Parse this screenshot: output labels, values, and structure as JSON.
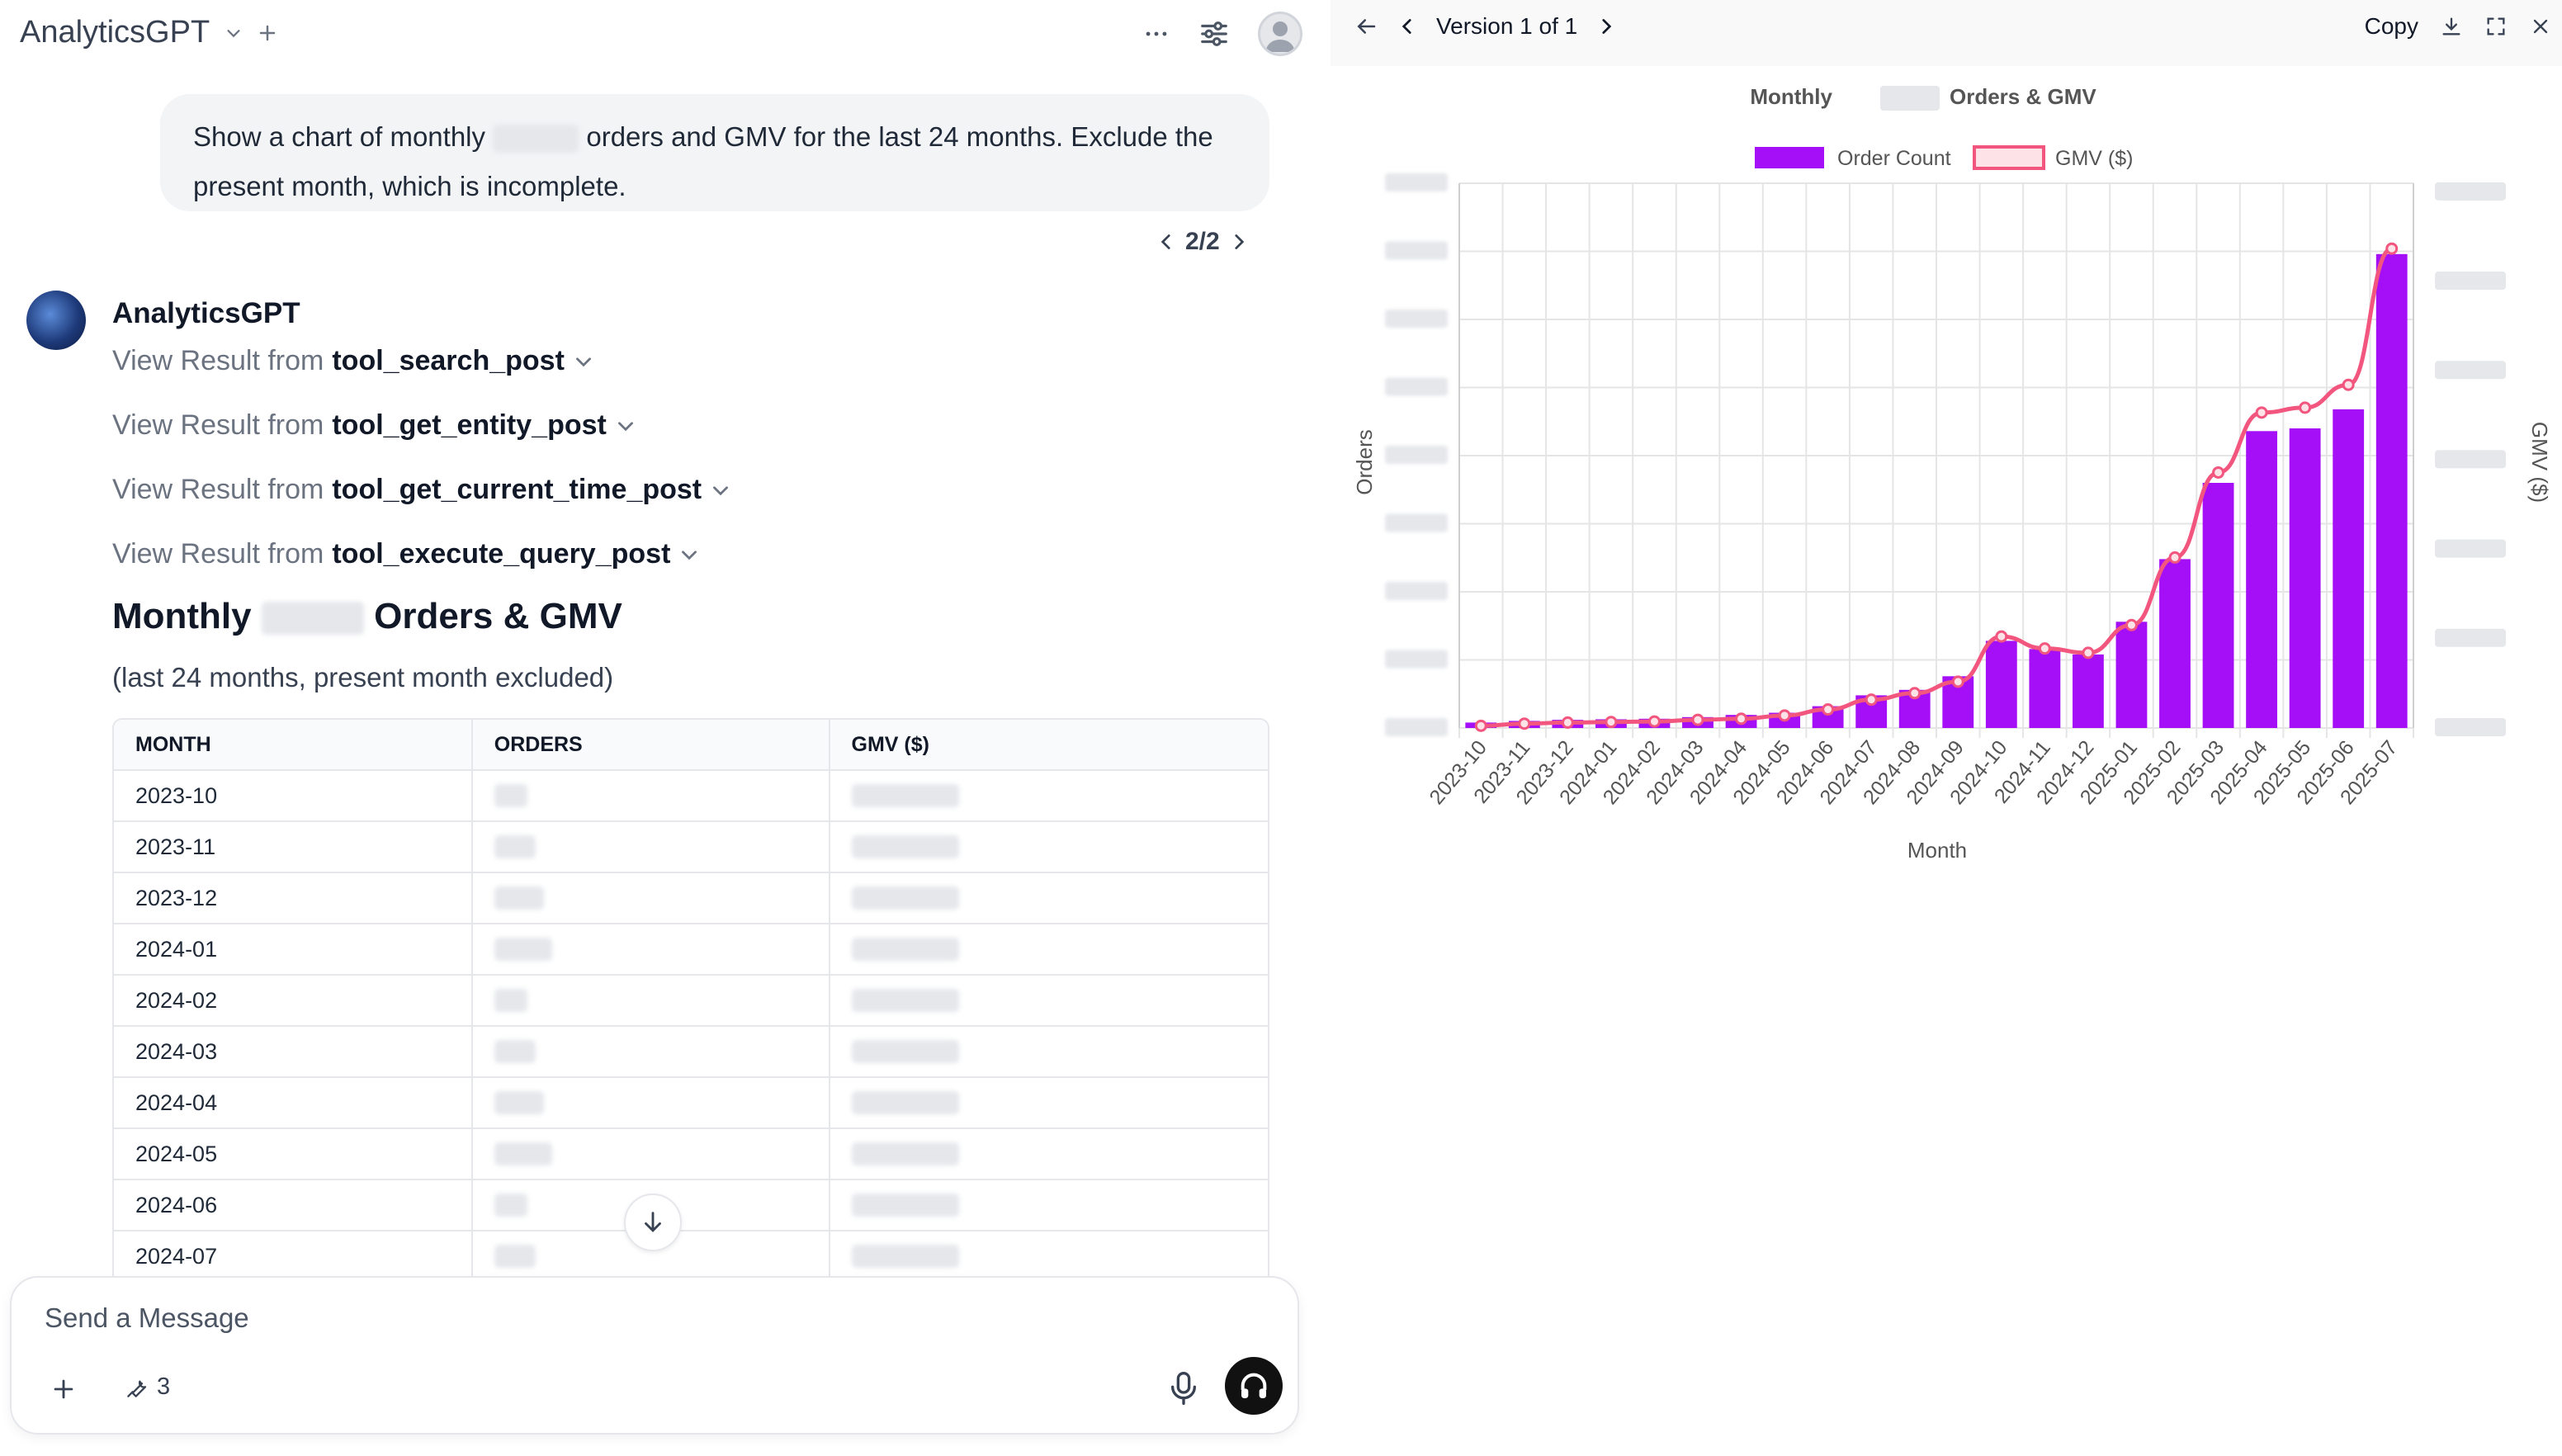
{
  "app": {
    "title": "AnalyticsGPT"
  },
  "user_message": {
    "text_before": "Show a chart of monthly",
    "text_after": "orders and GMV for the last 24 months. Exclude the present month, which is incomplete."
  },
  "pager": {
    "label": "2/2"
  },
  "assistant": {
    "name": "AnalyticsGPT",
    "tools": [
      {
        "prefix": "View Result from",
        "name": "tool_search_post"
      },
      {
        "prefix": "View Result from",
        "name": "tool_get_entity_post"
      },
      {
        "prefix": "View Result from",
        "name": "tool_get_current_time_post"
      },
      {
        "prefix": "View Result from",
        "name": "tool_execute_query_post"
      }
    ],
    "result_title_before": "Monthly",
    "result_title_after": "Orders & GMV",
    "result_subtitle": "(last 24 months, present month excluded)"
  },
  "table": {
    "headers": [
      "MONTH",
      "ORDERS",
      "GMV ($)"
    ],
    "months": [
      "2023-10",
      "2023-11",
      "2023-12",
      "2024-01",
      "2024-02",
      "2024-03",
      "2024-04",
      "2024-05",
      "2024-06",
      "2024-07"
    ]
  },
  "composer": {
    "placeholder": "Send a Message",
    "tools_count": "3"
  },
  "artifact": {
    "version_label": "Version 1 of 1",
    "copy_label": "Copy"
  },
  "chart_data": {
    "type": "bar",
    "title_before": "Monthly",
    "title_after": "Orders & GMV",
    "xlabel": "Month",
    "ylabel_left": "Orders",
    "ylabel_right": "GMV ($)",
    "legend_placement": "top",
    "grid": true,
    "categories": [
      "2023-10",
      "2023-11",
      "2023-12",
      "2024-01",
      "2024-02",
      "2024-03",
      "2024-04",
      "2024-05",
      "2024-06",
      "2024-07",
      "2024-08",
      "2024-09",
      "2024-10",
      "2024-11",
      "2024-12",
      "2025-01",
      "2025-02",
      "2025-03",
      "2025-04",
      "2025-05",
      "2025-06",
      "2025-07"
    ],
    "series": [
      {
        "name": "Order Count",
        "type": "bar",
        "axis": "left",
        "color": "#a50ff7",
        "values": [
          1.0,
          1.3,
          1.5,
          1.6,
          1.7,
          2.0,
          2.4,
          2.8,
          4.0,
          6.0,
          7.0,
          9.5,
          16.0,
          14.5,
          13.5,
          19.5,
          31.0,
          45.0,
          54.5,
          55.0,
          58.5,
          87.0
        ]
      },
      {
        "name": "GMV ($)",
        "type": "line",
        "axis": "right",
        "color": "#f2567f",
        "values": [
          0.4,
          0.8,
          1.0,
          1.1,
          1.2,
          1.5,
          1.7,
          2.3,
          3.4,
          5.2,
          6.4,
          8.5,
          16.8,
          14.6,
          13.8,
          18.9,
          31.3,
          46.9,
          57.9,
          58.8,
          63.0,
          88.0
        ]
      }
    ],
    "ylim_left": [
      0,
      100
    ],
    "ylim_right": [
      0,
      100
    ]
  },
  "colors": {
    "bar": "#a50ff7",
    "line": "#f2567f",
    "send": "#111111"
  }
}
